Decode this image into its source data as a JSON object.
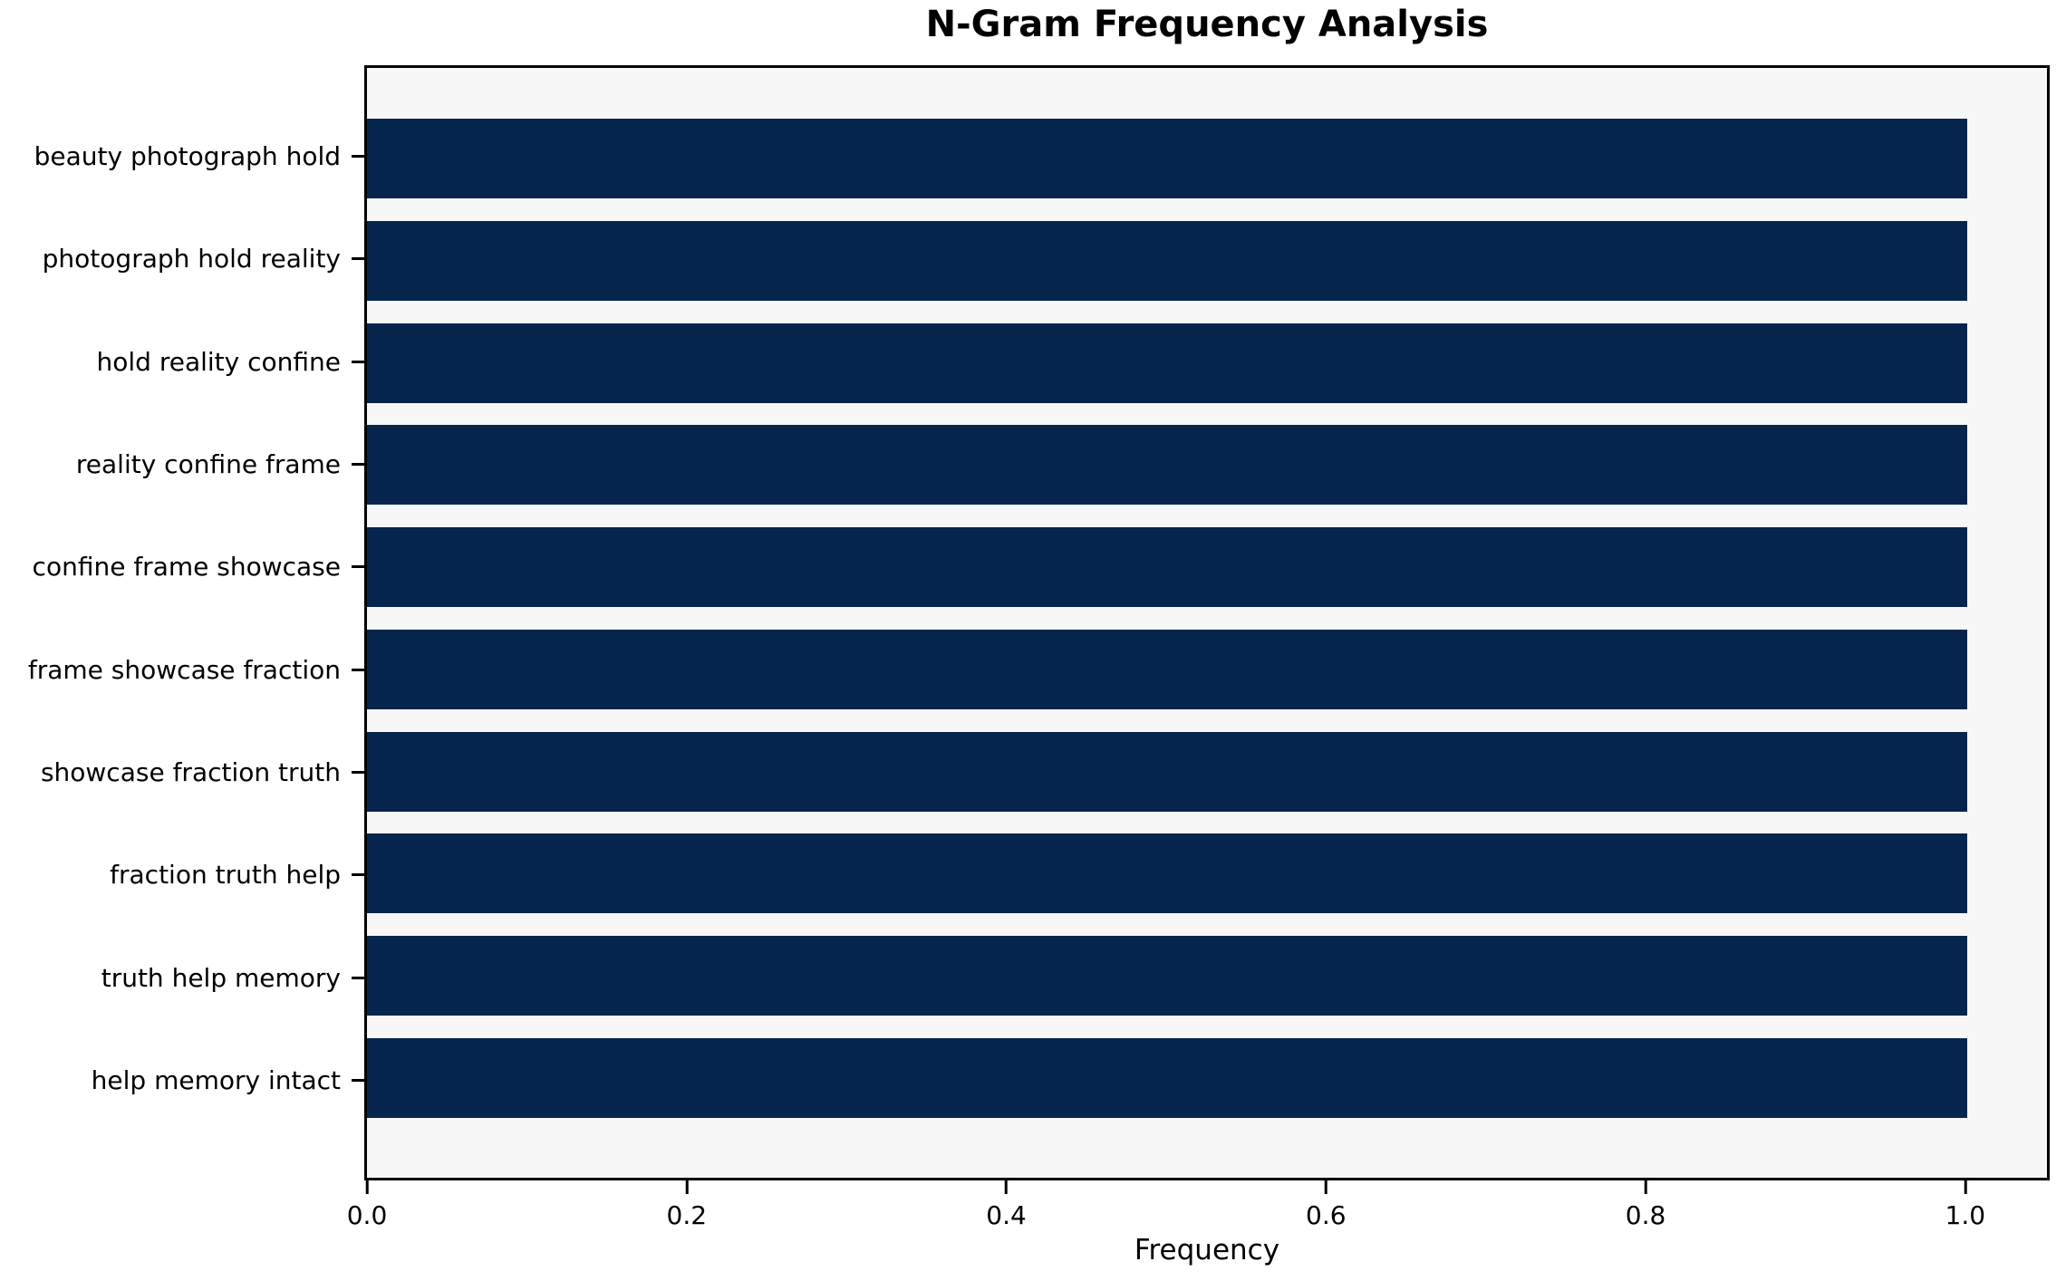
{
  "chart_data": {
    "type": "bar",
    "orientation": "horizontal",
    "title": "N-Gram Frequency Analysis",
    "xlabel": "Frequency",
    "ylabel": "",
    "categories": [
      "beauty photograph hold",
      "photograph hold reality",
      "hold reality confine",
      "reality confine frame",
      "confine frame showcase",
      "frame showcase fraction",
      "showcase fraction truth",
      "fraction truth help",
      "truth help memory",
      "help memory intact"
    ],
    "values": [
      1.0,
      1.0,
      1.0,
      1.0,
      1.0,
      1.0,
      1.0,
      1.0,
      1.0,
      1.0
    ],
    "xlim": [
      0.0,
      1.05
    ],
    "x_ticks": [
      "0.0",
      "0.2",
      "0.4",
      "0.6",
      "0.8",
      "1.0"
    ],
    "x_tick_values": [
      0.0,
      0.2,
      0.4,
      0.6,
      0.8,
      1.0
    ],
    "grid": false,
    "legend": null,
    "bar_color": "#05254d",
    "plot_bg_color": "#f7f7f7",
    "figure_bg_color": "#ffffff",
    "axis_color": "#000000"
  }
}
